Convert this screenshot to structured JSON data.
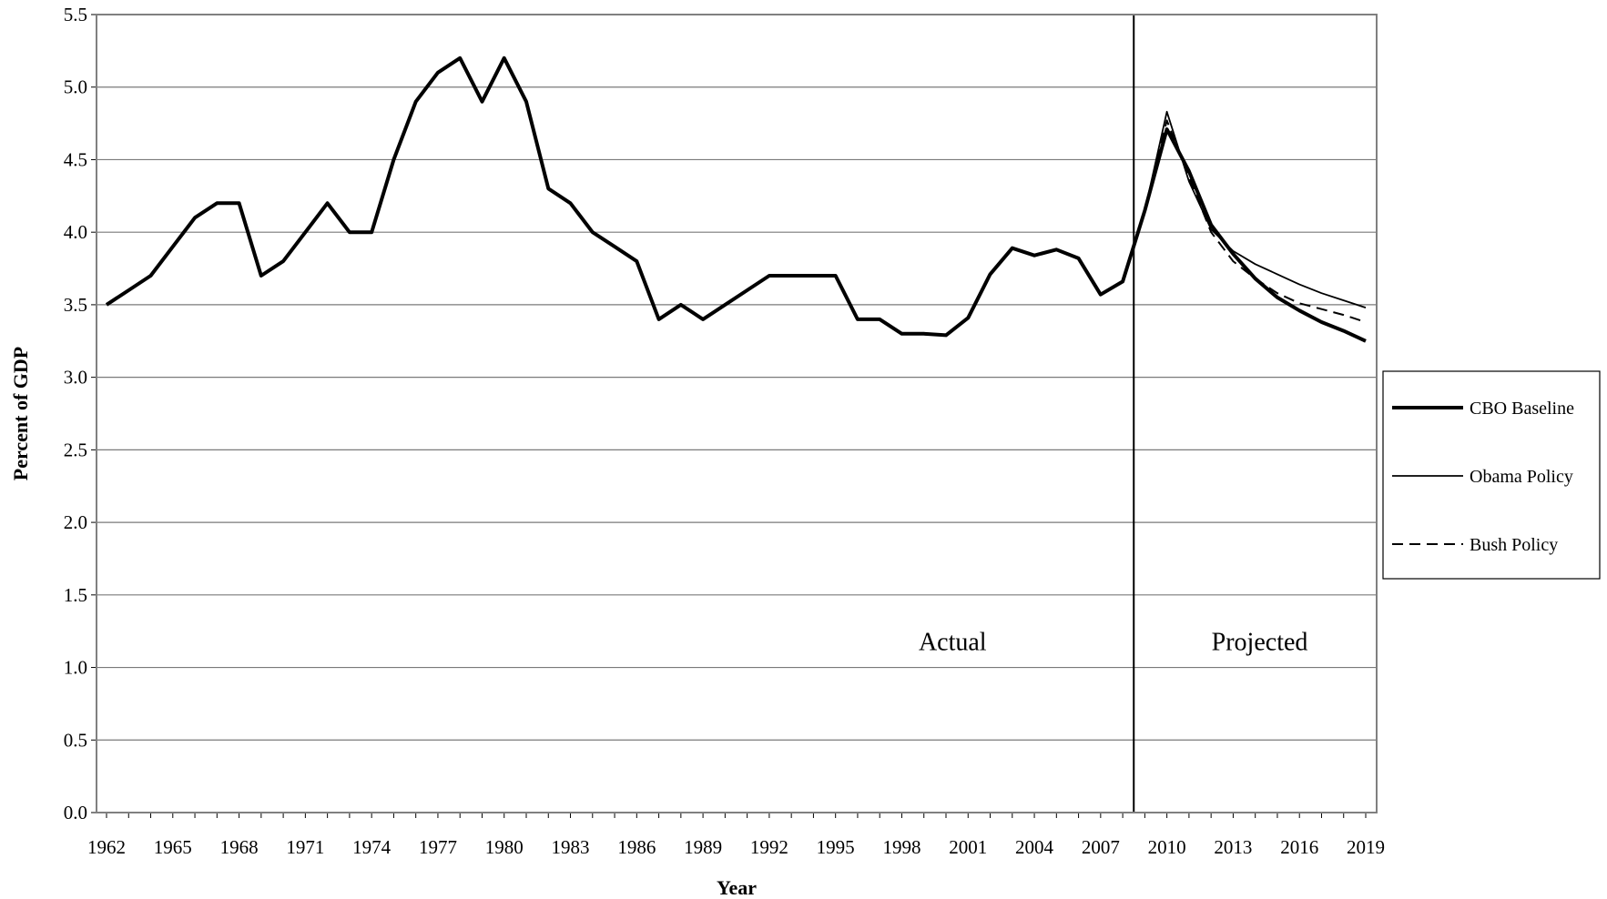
{
  "chart_data": {
    "type": "line",
    "title": "",
    "xlabel": "Year",
    "ylabel": "Percent of GDP",
    "ylim": [
      0,
      5.5
    ],
    "yticks": [
      "0.0",
      "0.5",
      "1.0",
      "1.5",
      "2.0",
      "2.5",
      "3.0",
      "3.5",
      "4.0",
      "4.5",
      "5.0",
      "5.5"
    ],
    "xlim": [
      1962,
      2019
    ],
    "xticks": [
      "1962",
      "1965",
      "1968",
      "1971",
      "1974",
      "1977",
      "1980",
      "1983",
      "1986",
      "1989",
      "1992",
      "1995",
      "1998",
      "2001",
      "2004",
      "2007",
      "2010",
      "2013",
      "2016",
      "2019"
    ],
    "grid": "horizontal",
    "divider_year": 2008.5,
    "regions": {
      "actual": "Actual",
      "projected": "Projected"
    },
    "legend_position": "right",
    "series": [
      {
        "name": "CBO Baseline",
        "style": "thick",
        "x": [
          1962,
          1963,
          1964,
          1965,
          1966,
          1967,
          1968,
          1969,
          1970,
          1971,
          1972,
          1973,
          1974,
          1975,
          1976,
          1977,
          1978,
          1979,
          1980,
          1981,
          1982,
          1983,
          1984,
          1985,
          1986,
          1987,
          1988,
          1989,
          1990,
          1991,
          1992,
          1993,
          1994,
          1995,
          1996,
          1997,
          1998,
          1999,
          2000,
          2001,
          2002,
          2003,
          2004,
          2005,
          2006,
          2007,
          2008,
          2009,
          2010,
          2011,
          2012,
          2013,
          2014,
          2015,
          2016,
          2017,
          2018,
          2019
        ],
        "values": [
          3.5,
          3.6,
          3.7,
          3.9,
          4.1,
          4.2,
          4.2,
          3.7,
          3.8,
          4.0,
          4.2,
          4.0,
          4.0,
          4.5,
          4.9,
          5.1,
          5.2,
          4.9,
          5.2,
          4.9,
          4.3,
          4.2,
          4.0,
          3.9,
          3.8,
          3.4,
          3.5,
          3.4,
          3.5,
          3.6,
          3.7,
          3.7,
          3.7,
          3.7,
          3.4,
          3.4,
          3.3,
          3.3,
          3.29,
          3.41,
          3.71,
          3.89,
          3.84,
          3.88,
          3.82,
          3.57,
          3.66,
          4.15,
          4.71,
          4.42,
          4.05,
          3.85,
          3.68,
          3.55,
          3.46,
          3.38,
          3.32,
          3.25
        ]
      },
      {
        "name": "Obama Policy",
        "style": "thin",
        "x": [
          2009,
          2010,
          2011,
          2012,
          2013,
          2014,
          2015,
          2016,
          2017,
          2018,
          2019
        ],
        "values": [
          4.15,
          4.83,
          4.35,
          4.02,
          3.87,
          3.78,
          3.71,
          3.64,
          3.58,
          3.53,
          3.48
        ]
      },
      {
        "name": "Bush Policy",
        "style": "dashed",
        "x": [
          2009,
          2010,
          2011,
          2012,
          2013,
          2014,
          2015,
          2016,
          2017,
          2018,
          2019
        ],
        "values": [
          4.15,
          4.77,
          4.38,
          4.0,
          3.8,
          3.68,
          3.58,
          3.51,
          3.47,
          3.43,
          3.38
        ]
      }
    ]
  }
}
